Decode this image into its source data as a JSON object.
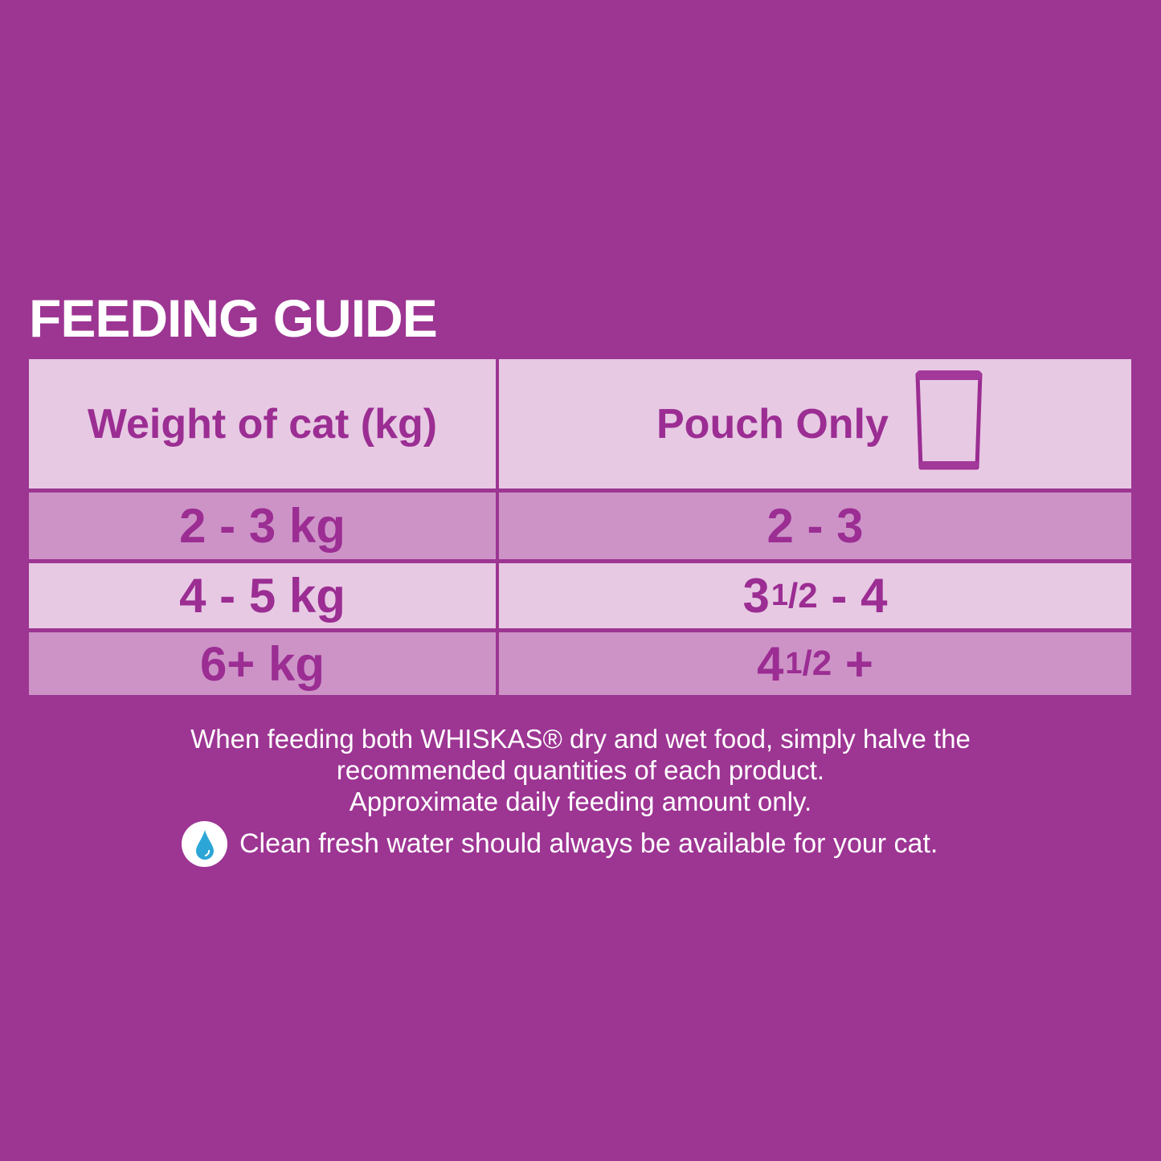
{
  "title": "FEEDING GUIDE",
  "table": {
    "headers": [
      "Weight of cat (kg)",
      "Pouch Only"
    ],
    "pouch_icon": "pouch-icon",
    "rows": [
      {
        "weight": "2 - 3 kg",
        "pouch": {
          "whole": "2 - 3",
          "num": "",
          "den": "",
          "rest": ""
        }
      },
      {
        "weight": "4 - 5 kg",
        "pouch": {
          "whole": "3",
          "num": "1",
          "den": "/2",
          "rest": " - 4"
        }
      },
      {
        "weight": "6+ kg",
        "pouch": {
          "whole": "4",
          "num": "1",
          "den": "/2",
          "rest": " +"
        }
      }
    ]
  },
  "note_lines": [
    "When feeding both WHISKAS® dry and wet food, simply halve the",
    "recommended quantities of each product.",
    "Approximate daily feeding amount only."
  ],
  "water_note": "Clean fresh water should always be available for your cat.",
  "water_icon": "water-drop-icon",
  "colors": {
    "background": "#9d3593",
    "light_cell": "#e7c9e3",
    "dark_cell": "#cd93c7",
    "text": "#9b2d93",
    "drop": "#2ba6d6"
  }
}
